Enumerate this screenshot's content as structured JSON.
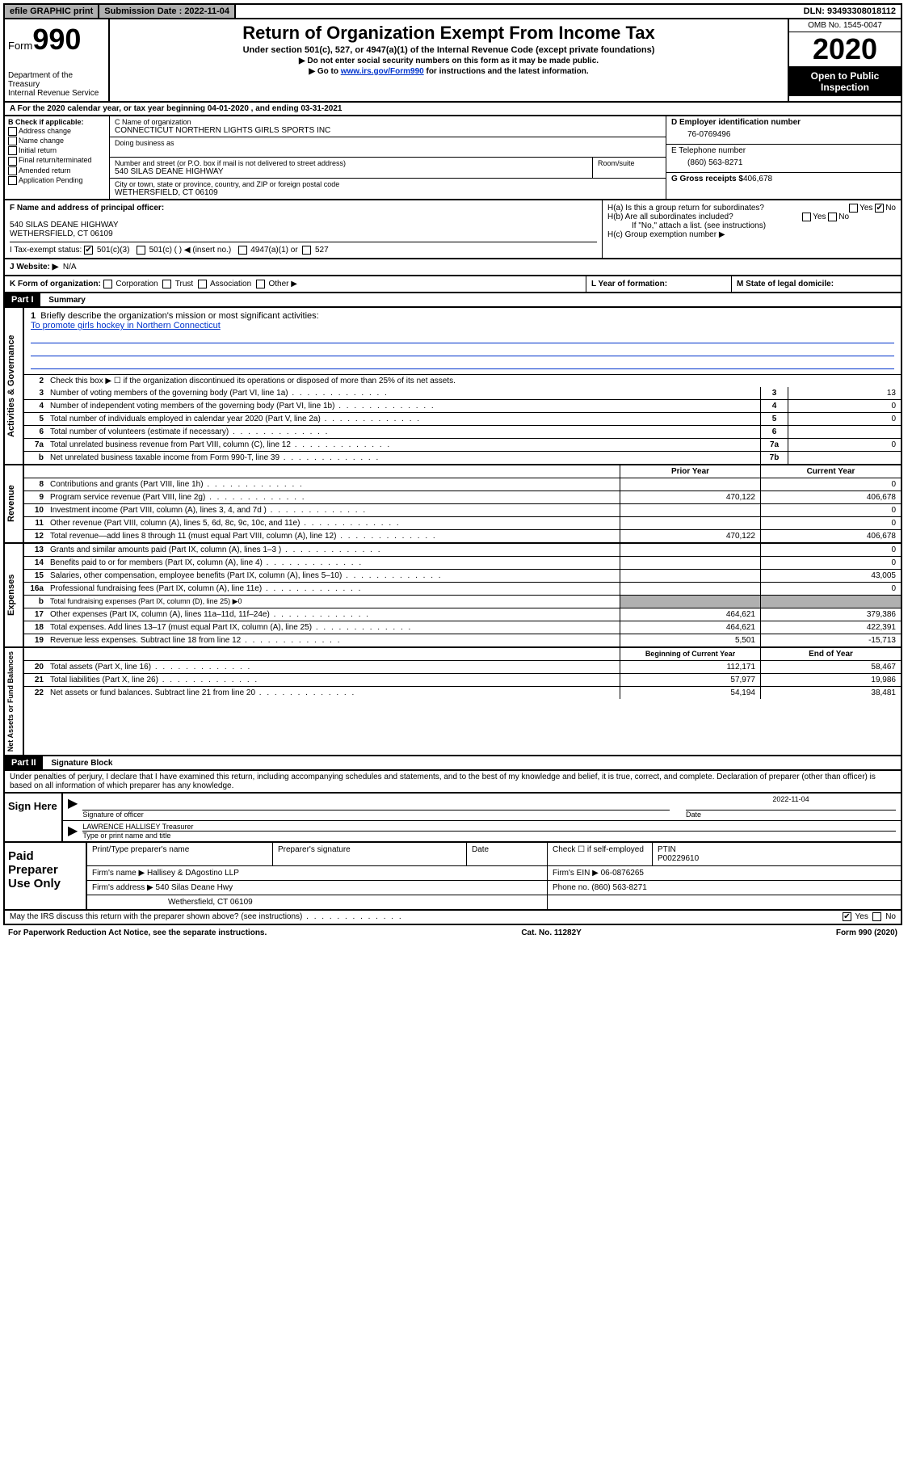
{
  "top": {
    "efile": "efile GRAPHIC print",
    "sub_date_label": "Submission Date : 2022-11-04",
    "dln": "DLN: 93493308018112"
  },
  "header": {
    "form_word": "Form",
    "form_num": "990",
    "dept": "Department of the Treasury\nInternal Revenue Service",
    "title": "Return of Organization Exempt From Income Tax",
    "subtitle": "Under section 501(c), 527, or 4947(a)(1) of the Internal Revenue Code (except private foundations)",
    "note1": "▶ Do not enter social security numbers on this form as it may be made public.",
    "note2_pre": "▶ Go to ",
    "note2_link": "www.irs.gov/Form990",
    "note2_post": " for instructions and the latest information.",
    "omb": "OMB No. 1545-0047",
    "year": "2020",
    "open": "Open to Public Inspection"
  },
  "line_a": "For the 2020 calendar year, or tax year beginning 04-01-2020    , and ending 03-31-2021",
  "b": {
    "header": "B Check if applicable:",
    "addr": "Address change",
    "name": "Name change",
    "initial": "Initial return",
    "final": "Final return/terminated",
    "amended": "Amended return",
    "app": "Application Pending"
  },
  "c": {
    "name_label": "C Name of organization",
    "name": "CONNECTICUT NORTHERN LIGHTS GIRLS SPORTS INC",
    "dba_label": "Doing business as",
    "street_label": "Number and street (or P.O. box if mail is not delivered to street address)",
    "room_label": "Room/suite",
    "street": "540 SILAS DEANE HIGHWAY",
    "city_label": "City or town, state or province, country, and ZIP or foreign postal code",
    "city": "WETHERSFIELD, CT  06109"
  },
  "d": {
    "ein_label": "D Employer identification number",
    "ein": "76-0769496",
    "phone_label": "E Telephone number",
    "phone": "(860) 563-8271",
    "gross_label": "G Gross receipts $",
    "gross": "406,678"
  },
  "f": {
    "label": "F Name and address of principal officer:",
    "addr1": "540 SILAS DEANE HIGHWAY",
    "addr2": "WETHERSFIELD, CT  06109"
  },
  "h": {
    "ha": "H(a)  Is this a group return for subordinates?",
    "hb": "H(b)  Are all subordinates included?",
    "hb_note": "If \"No,\" attach a list. (see instructions)",
    "hc": "H(c)  Group exemption number ▶",
    "yes": "Yes",
    "no": "No"
  },
  "i": {
    "label": "I   Tax-exempt status:",
    "o1": "501(c)(3)",
    "o2": "501(c) (   ) ◀ (insert no.)",
    "o3": "4947(a)(1) or",
    "o4": "527"
  },
  "j": {
    "label": "J   Website: ▶",
    "val": "N/A"
  },
  "k": {
    "label": "K Form of organization:",
    "corp": "Corporation",
    "trust": "Trust",
    "assoc": "Association",
    "other": "Other ▶"
  },
  "l": "L Year of formation:",
  "m": "M State of legal domicile:",
  "part1": {
    "tag": "Part I",
    "title": "Summary"
  },
  "vert": {
    "ag": "Activities & Governance",
    "rev": "Revenue",
    "exp": "Expenses",
    "net": "Net Assets or Fund Balances"
  },
  "s1": {
    "num": "1",
    "label": "Briefly describe the organization's mission or most significant activities:",
    "text": "To promote girls hockey in Northern Connecticut"
  },
  "s2": {
    "num": "2",
    "label": "Check this box ▶ ☐  if the organization discontinued its operations or disposed of more than 25% of its net assets."
  },
  "rows_ag": [
    {
      "n": "3",
      "d": "Number of voting members of the governing body (Part VI, line 1a)",
      "box": "3",
      "v": "13"
    },
    {
      "n": "4",
      "d": "Number of independent voting members of the governing body (Part VI, line 1b)",
      "box": "4",
      "v": "0"
    },
    {
      "n": "5",
      "d": "Total number of individuals employed in calendar year 2020 (Part V, line 2a)",
      "box": "5",
      "v": "0"
    },
    {
      "n": "6",
      "d": "Total number of volunteers (estimate if necessary)",
      "box": "6",
      "v": ""
    },
    {
      "n": "7a",
      "d": "Total unrelated business revenue from Part VIII, column (C), line 12",
      "box": "7a",
      "v": "0"
    },
    {
      "n": "b",
      "d": "Net unrelated business taxable income from Form 990-T, line 39",
      "box": "7b",
      "v": ""
    }
  ],
  "col_hdr": {
    "prior": "Prior Year",
    "current": "Current Year"
  },
  "rows_rev": [
    {
      "n": "8",
      "d": "Contributions and grants (Part VIII, line 1h)",
      "p": "",
      "c": "0"
    },
    {
      "n": "9",
      "d": "Program service revenue (Part VIII, line 2g)",
      "p": "470,122",
      "c": "406,678"
    },
    {
      "n": "10",
      "d": "Investment income (Part VIII, column (A), lines 3, 4, and 7d )",
      "p": "",
      "c": "0"
    },
    {
      "n": "11",
      "d": "Other revenue (Part VIII, column (A), lines 5, 6d, 8c, 9c, 10c, and 11e)",
      "p": "",
      "c": "0"
    },
    {
      "n": "12",
      "d": "Total revenue—add lines 8 through 11 (must equal Part VIII, column (A), line 12)",
      "p": "470,122",
      "c": "406,678"
    }
  ],
  "rows_exp": [
    {
      "n": "13",
      "d": "Grants and similar amounts paid (Part IX, column (A), lines 1–3 )",
      "p": "",
      "c": "0"
    },
    {
      "n": "14",
      "d": "Benefits paid to or for members (Part IX, column (A), line 4)",
      "p": "",
      "c": "0"
    },
    {
      "n": "15",
      "d": "Salaries, other compensation, employee benefits (Part IX, column (A), lines 5–10)",
      "p": "",
      "c": "43,005"
    },
    {
      "n": "16a",
      "d": "Professional fundraising fees (Part IX, column (A), line 11e)",
      "p": "",
      "c": "0"
    },
    {
      "n": "b",
      "d": "Total fundraising expenses (Part IX, column (D), line 25) ▶0",
      "shaded": true
    },
    {
      "n": "17",
      "d": "Other expenses (Part IX, column (A), lines 11a–11d, 11f–24e)",
      "p": "464,621",
      "c": "379,386"
    },
    {
      "n": "18",
      "d": "Total expenses. Add lines 13–17 (must equal Part IX, column (A), line 25)",
      "p": "464,621",
      "c": "422,391"
    },
    {
      "n": "19",
      "d": "Revenue less expenses. Subtract line 18 from line 12",
      "p": "5,501",
      "c": "-15,713"
    }
  ],
  "col_hdr2": {
    "beg": "Beginning of Current Year",
    "end": "End of Year"
  },
  "rows_net": [
    {
      "n": "20",
      "d": "Total assets (Part X, line 16)",
      "p": "112,171",
      "c": "58,467"
    },
    {
      "n": "21",
      "d": "Total liabilities (Part X, line 26)",
      "p": "57,977",
      "c": "19,986"
    },
    {
      "n": "22",
      "d": "Net assets or fund balances. Subtract line 21 from line 20",
      "p": "54,194",
      "c": "38,481"
    }
  ],
  "part2": {
    "tag": "Part II",
    "title": "Signature Block"
  },
  "sig_intro": "Under penalties of perjury, I declare that I have examined this return, including accompanying schedules and statements, and to the best of my knowledge and belief, it is true, correct, and complete. Declaration of preparer (other than officer) is based on all information of which preparer has any knowledge.",
  "sign": {
    "here": "Sign Here",
    "sig_officer": "Signature of officer",
    "date": "Date",
    "date_val": "2022-11-04",
    "name": "LAWRENCE HALLISEY Treasurer",
    "type_label": "Type or print name and title"
  },
  "prep": {
    "label": "Paid Preparer Use Only",
    "r1": {
      "c1": "Print/Type preparer's name",
      "c2": "Preparer's signature",
      "c3": "Date",
      "c4": "Check ☐  if self-employed",
      "c5l": "PTIN",
      "c5": "P00229610"
    },
    "r2": {
      "c1": "Firm's name      ▶",
      "c1v": "Hallisey & DAgostino LLP",
      "c2": "Firm's EIN ▶",
      "c2v": "06-0876265"
    },
    "r3": {
      "c1": "Firm's address ▶",
      "c1v": "540 Silas Deane Hwy",
      "c2": "Phone no.",
      "c2v": "(860) 563-8271"
    },
    "r4": "Wethersfield, CT  06109"
  },
  "irs_discuss": "May the IRS discuss this return with the preparer shown above? (see instructions)",
  "footer": {
    "left": "For Paperwork Reduction Act Notice, see the separate instructions.",
    "mid": "Cat. No. 11282Y",
    "right": "Form 990 (2020)"
  }
}
